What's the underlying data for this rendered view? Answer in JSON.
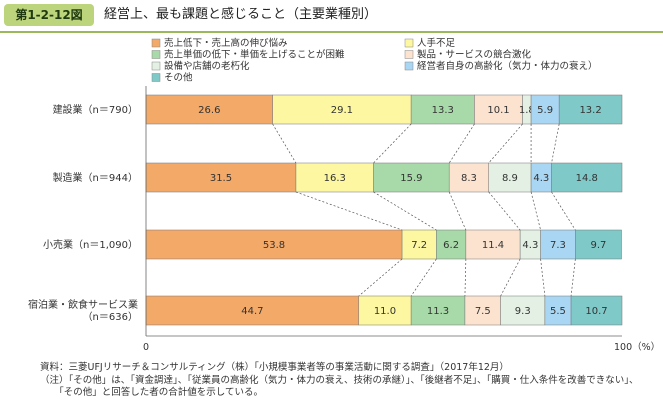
{
  "figure": {
    "label": "第1-2-12図",
    "title": "経営上、最も課題と感じること（主要業種別）"
  },
  "chart_data": {
    "type": "bar",
    "orientation": "horizontal",
    "stacked": true,
    "percent_stacked": true,
    "categories": [
      "建設業（n＝790）",
      "製造業（n＝944）",
      "小売業（n＝1,090）",
      "宿泊業・飲食サービス業（n＝636）"
    ],
    "category_lines": [
      [
        "建設業（n＝790）"
      ],
      [
        "製造業（n＝944）"
      ],
      [
        "小売業（n＝1,090）"
      ],
      [
        "宿泊業・飲食サービス業",
        "（n＝636）"
      ]
    ],
    "series": [
      {
        "name": "売上低下・売上高の伸び悩み",
        "color": "#f3a968",
        "values": [
          26.6,
          31.5,
          53.8,
          44.7
        ]
      },
      {
        "name": "人手不足",
        "color": "#fcf7a0",
        "values": [
          29.1,
          16.3,
          7.2,
          11.0
        ]
      },
      {
        "name": "売上単価の低下・単価を上げることが困難",
        "color": "#a8d9a8",
        "values": [
          13.3,
          15.9,
          6.2,
          11.3
        ]
      },
      {
        "name": "製品・サービスの競合激化",
        "color": "#fbe3d0",
        "values": [
          10.1,
          8.3,
          11.4,
          7.5
        ]
      },
      {
        "name": "設備や店舗の老朽化",
        "color": "#e3f0e3",
        "values": [
          1.8,
          8.9,
          4.3,
          9.3
        ]
      },
      {
        "name": "経営者自身の高齢化（気力・体力の衰え）",
        "color": "#a9d6f2",
        "values": [
          5.9,
          4.3,
          7.3,
          5.5
        ]
      },
      {
        "name": "その他",
        "color": "#7fc9c9",
        "values": [
          13.2,
          14.8,
          9.7,
          10.7
        ]
      }
    ],
    "xlim": [
      0,
      100
    ],
    "x_ticks": [
      "0",
      "100（%）"
    ],
    "legend_position": "top",
    "gridlines": false,
    "connector_lines": true
  },
  "notes": [
    "資料：三菱UFJリサーチ＆コンサルティング（株）「小規模事業者等の事業活動に関する調査」（2017年12月）",
    "（注）「その他」は、「資金調達」、「従業員の高齢化（気力・体力の衰え、技術の承継）」、「後継者不足」、「購買・仕入条件を改善できない」、",
    "　　「その他」と回答した者の合計値を示している。"
  ]
}
